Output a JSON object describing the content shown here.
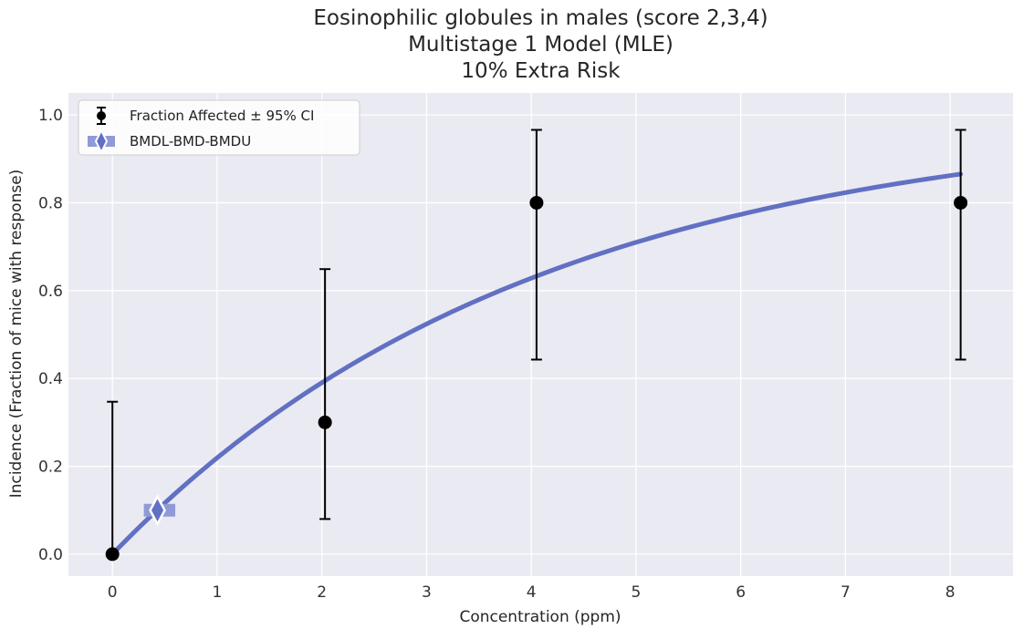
{
  "title_lines": [
    "Eosinophilic globules in males (score 2,3,4)",
    "Multistage 1 Model (MLE)",
    "10% Extra Risk"
  ],
  "chart_data": {
    "type": "scatter",
    "title": "Eosinophilic globules in males (score 2,3,4)\nMultistage 1 Model (MLE)\n10% Extra Risk",
    "xlabel": "Concentration (ppm)",
    "ylabel": "Incidence (Fraction of mice with response)",
    "xlim": [
      -0.42,
      8.6
    ],
    "ylim": [
      -0.05,
      1.05
    ],
    "xticks": [
      0,
      1,
      2,
      3,
      4,
      5,
      6,
      7,
      8
    ],
    "xtick_labels": [
      "0",
      "1",
      "2",
      "3",
      "4",
      "5",
      "6",
      "7",
      "8"
    ],
    "yticks": [
      0.0,
      0.2,
      0.4,
      0.6,
      0.8,
      1.0
    ],
    "ytick_labels": [
      "0.0",
      "0.2",
      "0.4",
      "0.6",
      "0.8",
      "1.0"
    ],
    "grid": true,
    "legend_position": "top-left",
    "observed": {
      "name": "Fraction Affected ± 95% CI",
      "x": [
        0,
        2.03,
        4.05,
        8.1
      ],
      "y": [
        0.0,
        0.3,
        0.8,
        0.8
      ],
      "ci_lower": [
        0.0,
        0.08,
        0.443,
        0.443
      ],
      "ci_upper": [
        0.347,
        0.649,
        0.966,
        0.966
      ]
    },
    "model_curve": {
      "type": "line",
      "model": "Multistage 1",
      "x_range": [
        0,
        8.1
      ],
      "background": 0.0,
      "slope": 0.2475
    },
    "bmd": {
      "name": "BMDL-BMD-BMDU",
      "bmdl": 0.3,
      "bmd": 0.43,
      "bmdu": 0.6,
      "response": 0.1
    },
    "colors": {
      "plot_background": "#eaeaf2",
      "grid": "#ffffff",
      "curve": "#6170c2",
      "bmd_band": "#8f9ad7",
      "points": "#000000"
    }
  }
}
